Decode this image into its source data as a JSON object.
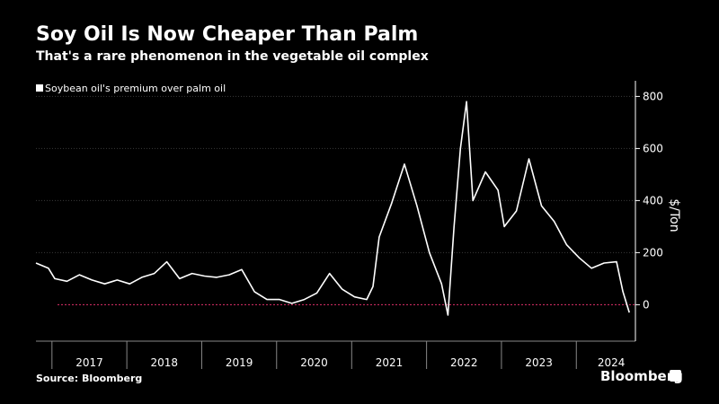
{
  "header": {
    "title": "Soy Oil Is Now Cheaper Than Palm",
    "subtitle": "That's a rare phenomenon in the vegetable oil complex"
  },
  "footer": {
    "source": "Source: Bloomberg",
    "brand": "Bloomberg"
  },
  "colors": {
    "background": "#000000",
    "line": "#ffffff",
    "zero_line": "#e0306a",
    "grid": "#3a3a3a"
  },
  "chart_data": {
    "type": "line",
    "title": "Soy Oil Is Now Cheaper Than Palm",
    "subtitle": "That's a rare phenomenon in the vegetable oil complex",
    "ylabel": "$/Ton",
    "xlabel": "",
    "ylim": [
      -140,
      860
    ],
    "xlim": [
      "2016-10-15",
      "2024-10-15"
    ],
    "yticks": [
      0,
      200,
      400,
      600,
      800
    ],
    "xticks": [
      "2017",
      "2018",
      "2019",
      "2020",
      "2021",
      "2022",
      "2023",
      "2024"
    ],
    "grid": "horizontal",
    "legend_position": "top-left",
    "reference_line": 0,
    "series": [
      {
        "name": "Soybean oil's premium over palm oil",
        "color": "#ffffff",
        "x": [
          "2016-10",
          "2016-12",
          "2017-01",
          "2017-03",
          "2017-05",
          "2017-07",
          "2017-09",
          "2017-11",
          "2018-01",
          "2018-03",
          "2018-05",
          "2018-07",
          "2018-09",
          "2018-11",
          "2019-01",
          "2019-03",
          "2019-05",
          "2019-07",
          "2019-09",
          "2019-11",
          "2020-01",
          "2020-03",
          "2020-05",
          "2020-07",
          "2020-09",
          "2020-11",
          "2021-01",
          "2021-03",
          "2021-04",
          "2021-05",
          "2021-07",
          "2021-09",
          "2021-11",
          "2022-01",
          "2022-03",
          "2022-04",
          "2022-05",
          "2022-06",
          "2022-07",
          "2022-08",
          "2022-10",
          "2022-12",
          "2023-01",
          "2023-03",
          "2023-05",
          "2023-07",
          "2023-09",
          "2023-11",
          "2024-01",
          "2024-03",
          "2024-05",
          "2024-07",
          "2024-08",
          "2024-09"
        ],
        "values": [
          160,
          140,
          100,
          90,
          115,
          95,
          80,
          95,
          80,
          105,
          120,
          165,
          100,
          120,
          110,
          105,
          115,
          135,
          50,
          20,
          20,
          5,
          20,
          45,
          120,
          60,
          30,
          20,
          70,
          260,
          390,
          540,
          380,
          200,
          80,
          -40,
          300,
          600,
          780,
          400,
          510,
          440,
          300,
          360,
          560,
          380,
          320,
          230,
          180,
          140,
          160,
          165,
          50,
          -30
        ]
      }
    ]
  }
}
